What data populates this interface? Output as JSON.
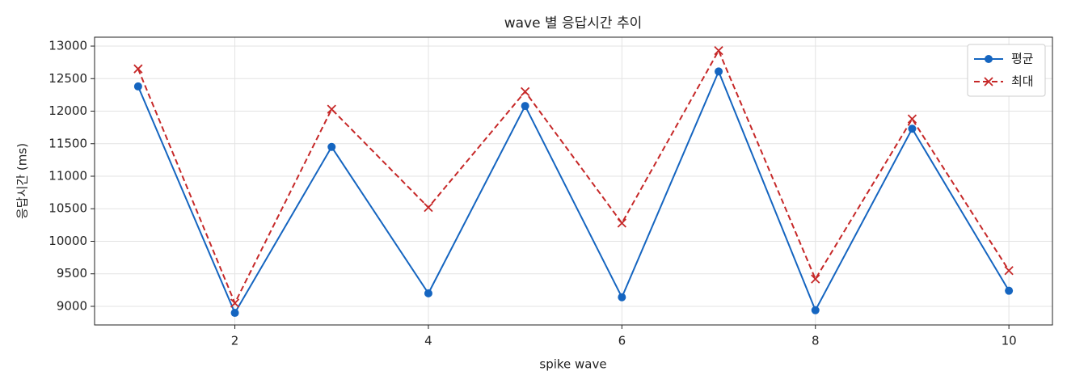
{
  "chart_data": {
    "type": "line",
    "title": "wave 별 응답시간 추이",
    "x_label": "spike wave",
    "y_label": "응답시간 (ms)",
    "x": [
      1,
      2,
      3,
      4,
      5,
      6,
      7,
      8,
      9,
      10
    ],
    "series": [
      {
        "name": "평균",
        "color": "#1565c0",
        "marker": "o",
        "linestyle": "solid",
        "values": [
          12380,
          8900,
          11450,
          9200,
          12080,
          9140,
          12610,
          8940,
          11730,
          9240
        ]
      },
      {
        "name": "최대",
        "color": "#c62828",
        "marker": "x",
        "linestyle": "dashed",
        "values": [
          12650,
          9050,
          12030,
          10520,
          12300,
          10280,
          12930,
          9420,
          11880,
          9550
        ]
      }
    ],
    "xlim": [
      0.55,
      10.45
    ],
    "ylim": [
      8714,
      13137
    ],
    "xticks": [
      2,
      4,
      6,
      8,
      10
    ],
    "yticks": [
      9000,
      9500,
      10000,
      10500,
      11000,
      11500,
      12000,
      12500,
      13000
    ],
    "grid": true,
    "legend": "upper right"
  }
}
